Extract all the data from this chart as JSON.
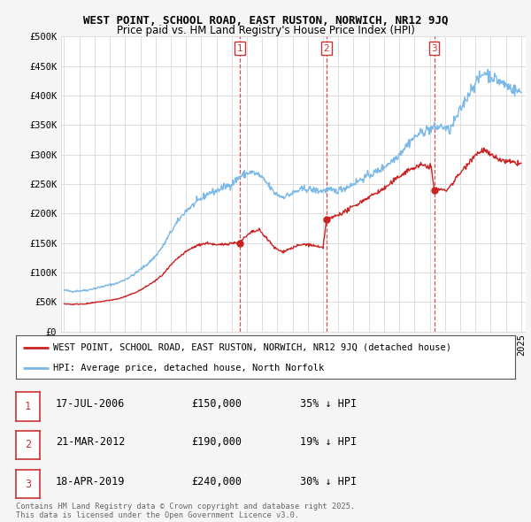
{
  "title": "WEST POINT, SCHOOL ROAD, EAST RUSTON, NORWICH, NR12 9JQ",
  "subtitle": "Price paid vs. HM Land Registry's House Price Index (HPI)",
  "ylabel_ticks": [
    "£0",
    "£50K",
    "£100K",
    "£150K",
    "£200K",
    "£250K",
    "£300K",
    "£350K",
    "£400K",
    "£450K",
    "£500K"
  ],
  "ytick_values": [
    0,
    50000,
    100000,
    150000,
    200000,
    250000,
    300000,
    350000,
    400000,
    450000,
    500000
  ],
  "ylim": [
    0,
    500000
  ],
  "xlim_start": 1994.8,
  "xlim_end": 2025.3,
  "hpi_color": "#7ab8e8",
  "price_color": "#cc2222",
  "sale_dashed_color": "#cc3333",
  "background_color": "#f5f5f5",
  "plot_bg_color": "#ffffff",
  "grid_color": "#dddddd",
  "legend_label_property": "WEST POINT, SCHOOL ROAD, EAST RUSTON, NORWICH, NR12 9JQ (detached house)",
  "legend_label_hpi": "HPI: Average price, detached house, North Norfolk",
  "sale_points": [
    {
      "id": 1,
      "date": 2006.54,
      "price": 150000,
      "label": "1"
    },
    {
      "id": 2,
      "date": 2012.22,
      "price": 190000,
      "label": "2"
    },
    {
      "id": 3,
      "date": 2019.29,
      "price": 240000,
      "label": "3"
    }
  ],
  "sale_table": [
    {
      "num": "1",
      "date": "17-JUL-2006",
      "price": "£150,000",
      "pct": "35% ↓ HPI"
    },
    {
      "num": "2",
      "date": "21-MAR-2012",
      "price": "£190,000",
      "pct": "19% ↓ HPI"
    },
    {
      "num": "3",
      "date": "18-APR-2019",
      "price": "£240,000",
      "pct": "30% ↓ HPI"
    }
  ],
  "footer": "Contains HM Land Registry data © Crown copyright and database right 2025.\nThis data is licensed under the Open Government Licence v3.0.",
  "title_fontsize": 9.0,
  "subtitle_fontsize": 8.5,
  "tick_fontsize": 7.5,
  "legend_fontsize": 7.5,
  "table_fontsize": 8.5
}
